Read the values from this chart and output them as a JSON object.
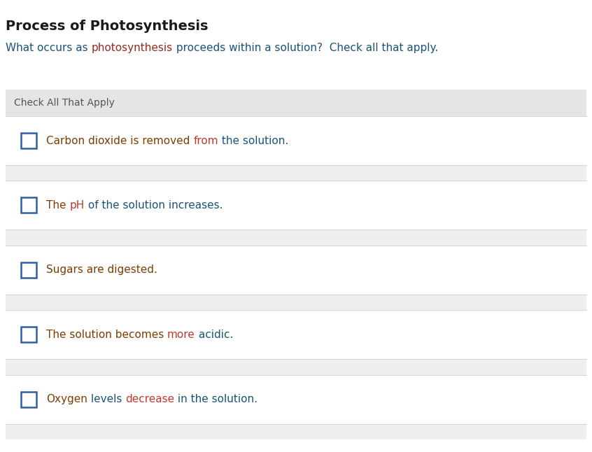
{
  "title": "Process of Photosynthesis",
  "subtitle_parts": [
    {
      "text": "What occurs as ",
      "color": "#1a5276"
    },
    {
      "text": "photosynthesis",
      "color": "#922b21"
    },
    {
      "text": " proceeds within a solution?  Check all that apply.",
      "color": "#1a5276"
    }
  ],
  "check_all_label": "Check All That Apply",
  "check_all_label_color": "#555555",
  "options": [
    {
      "parts": [
        {
          "text": "Carbon dioxide is removed ",
          "color": "#7d3c00"
        },
        {
          "text": "from",
          "color": "#c0392b"
        },
        {
          "text": " the solution.",
          "color": "#1a5276"
        }
      ]
    },
    {
      "parts": [
        {
          "text": "The ",
          "color": "#7d3c00"
        },
        {
          "text": "pH",
          "color": "#c0392b"
        },
        {
          "text": " of the solution increases.",
          "color": "#1a5276"
        }
      ]
    },
    {
      "parts": [
        {
          "text": "Sugars are digested.",
          "color": "#7d3c00"
        }
      ]
    },
    {
      "parts": [
        {
          "text": "The solution becomes ",
          "color": "#7d3c00"
        },
        {
          "text": "more",
          "color": "#c0392b"
        },
        {
          "text": " acidic.",
          "color": "#1a5276"
        }
      ]
    },
    {
      "parts": [
        {
          "text": "Oxygen",
          "color": "#7d3c00"
        },
        {
          "text": " levels ",
          "color": "#1a5276"
        },
        {
          "text": "decrease",
          "color": "#c0392b"
        },
        {
          "text": " in the solution.",
          "color": "#1a5276"
        }
      ]
    }
  ],
  "bg_color": "#ffffff",
  "panel_bg": "#efefef",
  "header_bg": "#e5e5e5",
  "row_bg": "#ffffff",
  "separator_bg": "#efefef",
  "checkbox_color": "#2e5fa3",
  "title_color": "#1a1a1a",
  "fig_width": 8.46,
  "fig_height": 6.46,
  "dpi": 100
}
